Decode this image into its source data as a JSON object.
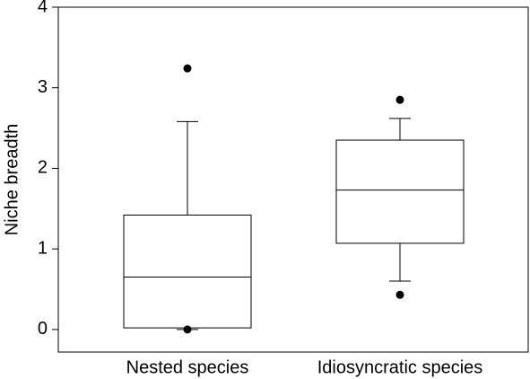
{
  "chart_data": {
    "type": "box",
    "y_label": "Niche breadth",
    "categories": [
      "Nested species",
      "Idiosyncratic species"
    ],
    "boxes": [
      {
        "whislo": 0.0,
        "q1": 0.02,
        "median": 0.65,
        "q3": 1.42,
        "whishi": 2.58,
        "outliers": [
          3.24,
          0.0
        ]
      },
      {
        "whislo": 0.6,
        "q1": 1.07,
        "median": 1.73,
        "q3": 2.35,
        "whishi": 2.62,
        "outliers": [
          2.85,
          0.43
        ]
      }
    ],
    "color": "#000000",
    "ylim": [
      -0.28,
      4
    ],
    "yticks": [
      0,
      1,
      2,
      3,
      4
    ]
  }
}
